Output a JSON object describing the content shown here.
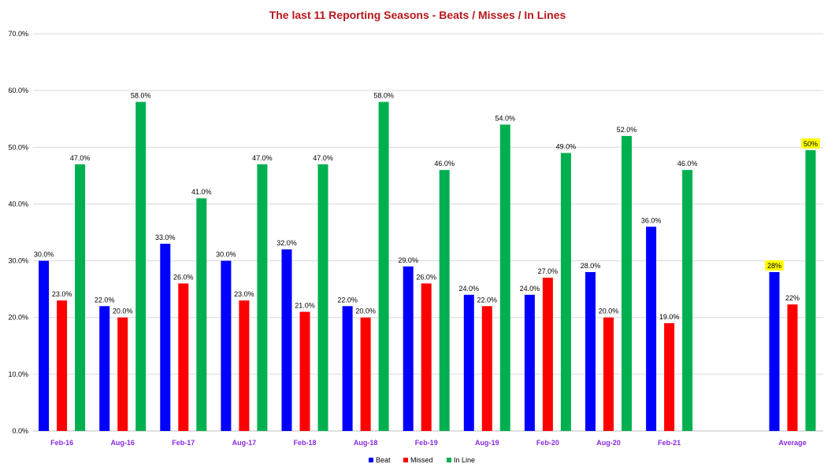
{
  "chart_data": {
    "type": "bar",
    "title": "The last 11  Reporting Seasons - Beats / Misses / In  Lines",
    "categories": [
      "Feb-16",
      "Aug-16",
      "Feb-17",
      "Aug-17",
      "Feb-18",
      "Aug-18",
      "Feb-19",
      "Aug-19",
      "Feb-20",
      "Aug-20",
      "Feb-21",
      "Average"
    ],
    "series": [
      {
        "name": "Beat",
        "color": "#0000ff",
        "values": [
          30,
          22,
          33,
          30,
          32,
          22,
          29,
          24,
          24,
          28,
          36,
          28
        ],
        "labels": [
          "30.0%",
          "22.0%",
          "33.0%",
          "30.0%",
          "32.0%",
          "22.0%",
          "29.0%",
          "24.0%",
          "24.0%",
          "28.0%",
          "36.0%",
          "28%"
        ]
      },
      {
        "name": "Missed",
        "color": "#ff0000",
        "values": [
          23,
          20,
          26,
          23,
          21,
          20,
          26,
          22,
          27,
          20,
          19,
          22.3
        ],
        "labels": [
          "23.0%",
          "20.0%",
          "26.0%",
          "23.0%",
          "21.0%",
          "20.0%",
          "26.0%",
          "22.0%",
          "27.0%",
          "20.0%",
          "19.0%",
          "22%"
        ]
      },
      {
        "name": "In Line",
        "color": "#00b050",
        "values": [
          47,
          58,
          41,
          47,
          47,
          58,
          46,
          54,
          49,
          52,
          46,
          49.5
        ],
        "labels": [
          "47.0%",
          "58.0%",
          "41.0%",
          "47.0%",
          "47.0%",
          "58.0%",
          "46.0%",
          "54.0%",
          "49.0%",
          "52.0%",
          "46.0%",
          "50%"
        ]
      }
    ],
    "highlighted_labels": {
      "Average": [
        "Beat",
        "In Line"
      ]
    },
    "highlight_color": "#ffff00",
    "ylim": [
      0,
      70
    ],
    "yticks": [
      0,
      10,
      20,
      30,
      40,
      50,
      60,
      70
    ],
    "ytick_labels": [
      "0.0%",
      "10.0%",
      "20.0%",
      "30.0%",
      "40.0%",
      "50.0%",
      "60.0%",
      "70.0%"
    ],
    "xlabel": "",
    "ylabel": "",
    "grid": true,
    "legend_position": "bottom-center"
  }
}
